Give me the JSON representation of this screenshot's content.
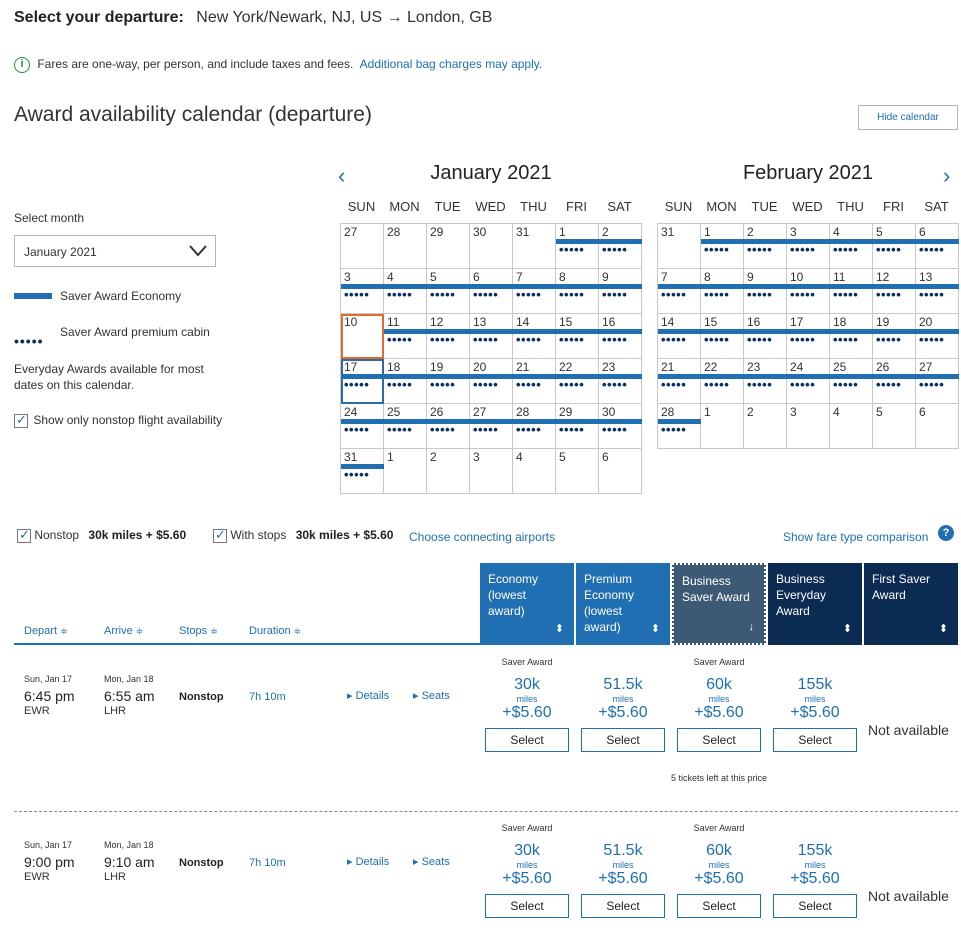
{
  "header": {
    "label": "Select your departure:",
    "route": "New York/Newark, NJ, US → London, GB"
  },
  "info": {
    "icon": "info-icon",
    "text": "Fares are one-way, per person, and include taxes and fees.",
    "link": "Additional bag charges may apply."
  },
  "calendar": {
    "title": "Award availability calendar (departure)",
    "hide_button": "Hide calendar",
    "select_month_label": "Select month",
    "selected_month": "January 2021",
    "legend_economy": "Saver Award Economy",
    "legend_premium": "Saver Award premium cabin",
    "everyday_note": "Everyday Awards available for most dates on this calendar.",
    "nonstop_only": "Show only nonstop flight availability",
    "prev_icon": "chevron-left-icon",
    "next_icon": "chevron-right-icon",
    "dow": [
      "SUN",
      "MON",
      "TUE",
      "WED",
      "THU",
      "FRI",
      "SAT"
    ],
    "dot_glyph": "•••••",
    "months": [
      {
        "title": "January 2021",
        "weeks": [
          [
            {
              "d": "27",
              "bar": false,
              "dots": false
            },
            {
              "d": "28",
              "bar": false,
              "dots": false
            },
            {
              "d": "29",
              "bar": false,
              "dots": false
            },
            {
              "d": "30",
              "bar": false,
              "dots": false
            },
            {
              "d": "31",
              "bar": false,
              "dots": false
            },
            {
              "d": "1",
              "bar": true,
              "dots": true
            },
            {
              "d": "2",
              "bar": true,
              "dots": true
            }
          ],
          [
            {
              "d": "3",
              "bar": true,
              "dots": true
            },
            {
              "d": "4",
              "bar": true,
              "dots": true
            },
            {
              "d": "5",
              "bar": true,
              "dots": true
            },
            {
              "d": "6",
              "bar": true,
              "dots": true
            },
            {
              "d": "7",
              "bar": true,
              "dots": true
            },
            {
              "d": "8",
              "bar": true,
              "dots": true
            },
            {
              "d": "9",
              "bar": true,
              "dots": true
            }
          ],
          [
            {
              "d": "10",
              "bar": false,
              "dots": false,
              "sel": "orange"
            },
            {
              "d": "11",
              "bar": true,
              "dots": true
            },
            {
              "d": "12",
              "bar": true,
              "dots": true
            },
            {
              "d": "13",
              "bar": true,
              "dots": true
            },
            {
              "d": "14",
              "bar": true,
              "dots": true
            },
            {
              "d": "15",
              "bar": true,
              "dots": true
            },
            {
              "d": "16",
              "bar": true,
              "dots": true
            }
          ],
          [
            {
              "d": "17",
              "bar": true,
              "dots": true,
              "sel": "blue"
            },
            {
              "d": "18",
              "bar": true,
              "dots": true
            },
            {
              "d": "19",
              "bar": true,
              "dots": true
            },
            {
              "d": "20",
              "bar": true,
              "dots": true
            },
            {
              "d": "21",
              "bar": true,
              "dots": true
            },
            {
              "d": "22",
              "bar": true,
              "dots": true
            },
            {
              "d": "23",
              "bar": true,
              "dots": true
            }
          ],
          [
            {
              "d": "24",
              "bar": true,
              "dots": true
            },
            {
              "d": "25",
              "bar": true,
              "dots": true
            },
            {
              "d": "26",
              "bar": true,
              "dots": true
            },
            {
              "d": "27",
              "bar": true,
              "dots": true
            },
            {
              "d": "28",
              "bar": true,
              "dots": true
            },
            {
              "d": "29",
              "bar": true,
              "dots": true
            },
            {
              "d": "30",
              "bar": true,
              "dots": true
            }
          ],
          [
            {
              "d": "31",
              "bar": true,
              "dots": true
            },
            {
              "d": "1",
              "bar": false,
              "dots": false
            },
            {
              "d": "2",
              "bar": false,
              "dots": false
            },
            {
              "d": "3",
              "bar": false,
              "dots": false
            },
            {
              "d": "4",
              "bar": false,
              "dots": false
            },
            {
              "d": "5",
              "bar": false,
              "dots": false
            },
            {
              "d": "6",
              "bar": false,
              "dots": false
            }
          ]
        ]
      },
      {
        "title": "February 2021",
        "weeks": [
          [
            {
              "d": "31",
              "bar": false,
              "dots": false
            },
            {
              "d": "1",
              "bar": true,
              "dots": true
            },
            {
              "d": "2",
              "bar": true,
              "dots": true
            },
            {
              "d": "3",
              "bar": true,
              "dots": true
            },
            {
              "d": "4",
              "bar": true,
              "dots": true
            },
            {
              "d": "5",
              "bar": true,
              "dots": true
            },
            {
              "d": "6",
              "bar": true,
              "dots": true
            }
          ],
          [
            {
              "d": "7",
              "bar": true,
              "dots": true
            },
            {
              "d": "8",
              "bar": true,
              "dots": true
            },
            {
              "d": "9",
              "bar": true,
              "dots": true
            },
            {
              "d": "10",
              "bar": true,
              "dots": true
            },
            {
              "d": "11",
              "bar": true,
              "dots": true
            },
            {
              "d": "12",
              "bar": true,
              "dots": true
            },
            {
              "d": "13",
              "bar": true,
              "dots": true
            }
          ],
          [
            {
              "d": "14",
              "bar": true,
              "dots": true
            },
            {
              "d": "15",
              "bar": true,
              "dots": true
            },
            {
              "d": "16",
              "bar": true,
              "dots": true
            },
            {
              "d": "17",
              "bar": true,
              "dots": true
            },
            {
              "d": "18",
              "bar": true,
              "dots": true
            },
            {
              "d": "19",
              "bar": true,
              "dots": true
            },
            {
              "d": "20",
              "bar": true,
              "dots": true
            }
          ],
          [
            {
              "d": "21",
              "bar": true,
              "dots": true
            },
            {
              "d": "22",
              "bar": true,
              "dots": true
            },
            {
              "d": "23",
              "bar": true,
              "dots": true
            },
            {
              "d": "24",
              "bar": true,
              "dots": true
            },
            {
              "d": "25",
              "bar": true,
              "dots": true
            },
            {
              "d": "26",
              "bar": true,
              "dots": true
            },
            {
              "d": "27",
              "bar": true,
              "dots": true
            }
          ],
          [
            {
              "d": "28",
              "bar": true,
              "dots": true
            },
            {
              "d": "1",
              "bar": false,
              "dots": false
            },
            {
              "d": "2",
              "bar": false,
              "dots": false
            },
            {
              "d": "3",
              "bar": false,
              "dots": false
            },
            {
              "d": "4",
              "bar": false,
              "dots": false
            },
            {
              "d": "5",
              "bar": false,
              "dots": false
            },
            {
              "d": "6",
              "bar": false,
              "dots": false
            }
          ]
        ]
      }
    ]
  },
  "filters": {
    "nonstop_label": "Nonstop",
    "nonstop_value": "30k miles + $5.60",
    "stops_label": "With stops",
    "stops_value": "30k miles + $5.60",
    "connecting_link": "Choose connecting airports",
    "comparison_link": "Show fare type comparison",
    "help_icon": "help-icon"
  },
  "columns": {
    "depart": "Depart",
    "arrive": "Arrive",
    "stops": "Stops",
    "duration": "Duration",
    "sort_glyph": "≑"
  },
  "fare_columns": [
    {
      "label": "Economy (lowest award)",
      "color": "#1f6fb2"
    },
    {
      "label": "Premium Economy (lowest award)",
      "color": "#1f6fb2"
    },
    {
      "label": "Business Saver Award",
      "color": "#3d5a75"
    },
    {
      "label": "Business Everyday Award",
      "color": "#0c2b52"
    },
    {
      "label": "First Saver Award",
      "color": "#0c2b52"
    }
  ],
  "flights": [
    {
      "dep_date": "Sun, Jan 17",
      "dep_time": "6:45 pm",
      "dep_airport": "EWR",
      "arr_date": "Mon, Jan 18",
      "arr_time": "6:55 am",
      "arr_airport": "LHR",
      "stops": "Nonstop",
      "duration": "7h 10m",
      "details": "Details",
      "seats": "Seats",
      "fares": [
        {
          "tag": "Saver Award",
          "miles": "30k",
          "unit": "miles",
          "tax": "+$5.60",
          "btn": "Select"
        },
        {
          "tag": "",
          "miles": "51.5k",
          "unit": "miles",
          "tax": "+$5.60",
          "btn": "Select"
        },
        {
          "tag": "Saver Award",
          "miles": "60k",
          "unit": "miles",
          "tax": "+$5.60",
          "btn": "Select",
          "note": "5 tickets left at this price"
        },
        {
          "tag": "",
          "miles": "155k",
          "unit": "miles",
          "tax": "+$5.60",
          "btn": "Select"
        }
      ],
      "first": "Not available"
    },
    {
      "dep_date": "Sun, Jan 17",
      "dep_time": "9:00 pm",
      "dep_airport": "EWR",
      "arr_date": "Mon, Jan 18",
      "arr_time": "9:10 am",
      "arr_airport": "LHR",
      "stops": "Nonstop",
      "duration": "7h 10m",
      "details": "Details",
      "seats": "Seats",
      "fares": [
        {
          "tag": "Saver Award",
          "miles": "30k",
          "unit": "miles",
          "tax": "+$5.60",
          "btn": "Select"
        },
        {
          "tag": "",
          "miles": "51.5k",
          "unit": "miles",
          "tax": "+$5.60",
          "btn": "Select"
        },
        {
          "tag": "Saver Award",
          "miles": "60k",
          "unit": "miles",
          "tax": "+$5.60",
          "btn": "Select"
        },
        {
          "tag": "",
          "miles": "155k",
          "unit": "miles",
          "tax": "+$5.60",
          "btn": "Select"
        }
      ],
      "first": "Not available"
    }
  ]
}
